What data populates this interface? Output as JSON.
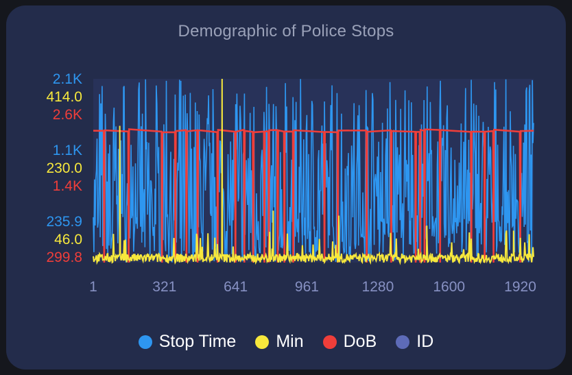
{
  "chart_data": {
    "type": "line",
    "title": "Demographic of Police Stops",
    "x_ticks": [
      "1",
      "321",
      "641",
      "961",
      "1280",
      "1600",
      "1920"
    ],
    "x_range": [
      1,
      1980
    ],
    "legend_placement": "bottom",
    "series": [
      {
        "name": "Stop Time",
        "color": "#2e96f0",
        "axis_ticks": [
          "235.9",
          "1.1K",
          "2.1K"
        ],
        "y_range": [
          235.9,
          2100
        ],
        "baseline": 600,
        "note_values": "dense noisy series spanning full range"
      },
      {
        "name": "Min",
        "color": "#f7e83c",
        "axis_ticks": [
          "46.0",
          "230.0",
          "414.0"
        ],
        "y_range": [
          46,
          414
        ],
        "baseline": 46,
        "spikes": [
          [
            120,
            320
          ],
          [
            580,
            414
          ],
          [
            810,
            150
          ],
          [
            1105,
            140
          ],
          [
            1500,
            120
          ],
          [
            1890,
            110
          ]
        ]
      },
      {
        "name": "DoB",
        "color": "#ef3e3a",
        "axis_ticks": [
          "299.8",
          "1.4K",
          "2.6K"
        ],
        "y_range": [
          299.8,
          2600
        ],
        "baseline": 1950,
        "dips_to": 299.8
      },
      {
        "name": "ID",
        "color": "#5d6bb8",
        "axis_ticks": [],
        "y_range": [
          1,
          1980
        ]
      }
    ]
  }
}
